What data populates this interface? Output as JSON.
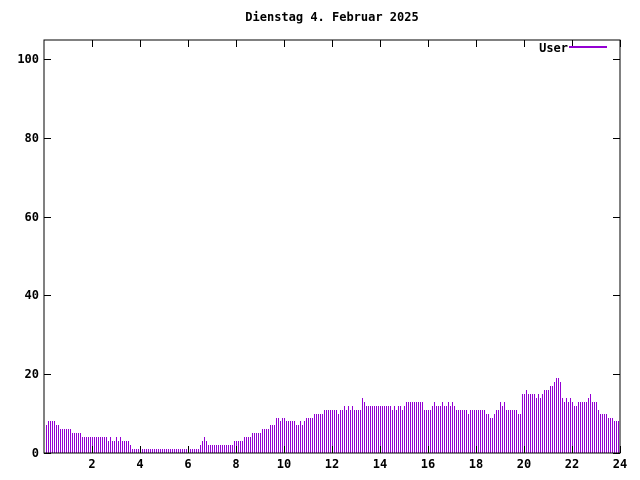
{
  "chart_data": {
    "type": "bar",
    "title": "Dienstag 4. Februar 2025",
    "xlabel": "",
    "ylabel": "",
    "xlim": [
      0,
      24
    ],
    "ylim": [
      0,
      104.8
    ],
    "x_ticks": [
      2,
      4,
      6,
      8,
      10,
      12,
      14,
      16,
      18,
      20,
      22,
      24
    ],
    "y_ticks": [
      0,
      20,
      40,
      60,
      80,
      100
    ],
    "grid": false,
    "legend_position": "top-right-inside",
    "series": [
      {
        "name": "User",
        "color": "#9400d3",
        "style": "impulses",
        "start_minute": 5,
        "interval_minutes": 5,
        "x_unit": "hours",
        "values": [
          7,
          8,
          8,
          8,
          8,
          7,
          7,
          6,
          6,
          6,
          6,
          6,
          6,
          5,
          5,
          5,
          5,
          5,
          4,
          4,
          4,
          4,
          4,
          4,
          4,
          4,
          4,
          4,
          4,
          4,
          4,
          3,
          4,
          3,
          3,
          4,
          3,
          4,
          3,
          3,
          3,
          3,
          2,
          1,
          1,
          1,
          1,
          1,
          1,
          1,
          1,
          1,
          1,
          1,
          1,
          1,
          1,
          1,
          1,
          1,
          1,
          1,
          1,
          1,
          1,
          1,
          1,
          1,
          1,
          1,
          1,
          1,
          1,
          1,
          1,
          1,
          1,
          2,
          3,
          4,
          3,
          2,
          2,
          2,
          2,
          2,
          2,
          2,
          2,
          2,
          2,
          2,
          2,
          2,
          3,
          3,
          3,
          3,
          3,
          4,
          4,
          4,
          4,
          5,
          5,
          5,
          5,
          5,
          6,
          6,
          6,
          6,
          7,
          7,
          7,
          9,
          9,
          8,
          9,
          9,
          8,
          8,
          8,
          8,
          8,
          7,
          7,
          8,
          7,
          8,
          9,
          9,
          9,
          9,
          10,
          10,
          10,
          10,
          10,
          11,
          11,
          11,
          11,
          11,
          11,
          11,
          10,
          11,
          11,
          12,
          11,
          12,
          11,
          12,
          11,
          11,
          11,
          11,
          14,
          13,
          12,
          12,
          12,
          12,
          12,
          12,
          12,
          12,
          12,
          12,
          12,
          12,
          12,
          11,
          12,
          11,
          12,
          12,
          11,
          12,
          13,
          13,
          13,
          13,
          13,
          13,
          13,
          13,
          13,
          11,
          11,
          11,
          11,
          12,
          13,
          12,
          12,
          12,
          13,
          12,
          12,
          13,
          12,
          13,
          12,
          11,
          11,
          11,
          11,
          11,
          11,
          10,
          11,
          11,
          11,
          11,
          11,
          11,
          11,
          11,
          10,
          10,
          9,
          9,
          10,
          11,
          11,
          13,
          12,
          13,
          11,
          11,
          11,
          11,
          11,
          11,
          10,
          10,
          15,
          15,
          16,
          15,
          15,
          15,
          15,
          14,
          15,
          14,
          15,
          16,
          16,
          16,
          17,
          17,
          18,
          19,
          19,
          18,
          14,
          13,
          14,
          13,
          14,
          13,
          12,
          12,
          13,
          13,
          13,
          13,
          13,
          14,
          15,
          13,
          13,
          13,
          11,
          10,
          10,
          10,
          10,
          9,
          9,
          9,
          8,
          8,
          8
        ]
      }
    ]
  },
  "colors": {
    "background": "#ffffff",
    "axis": "#000000",
    "text": "#000000",
    "bar": "#9400d3"
  }
}
